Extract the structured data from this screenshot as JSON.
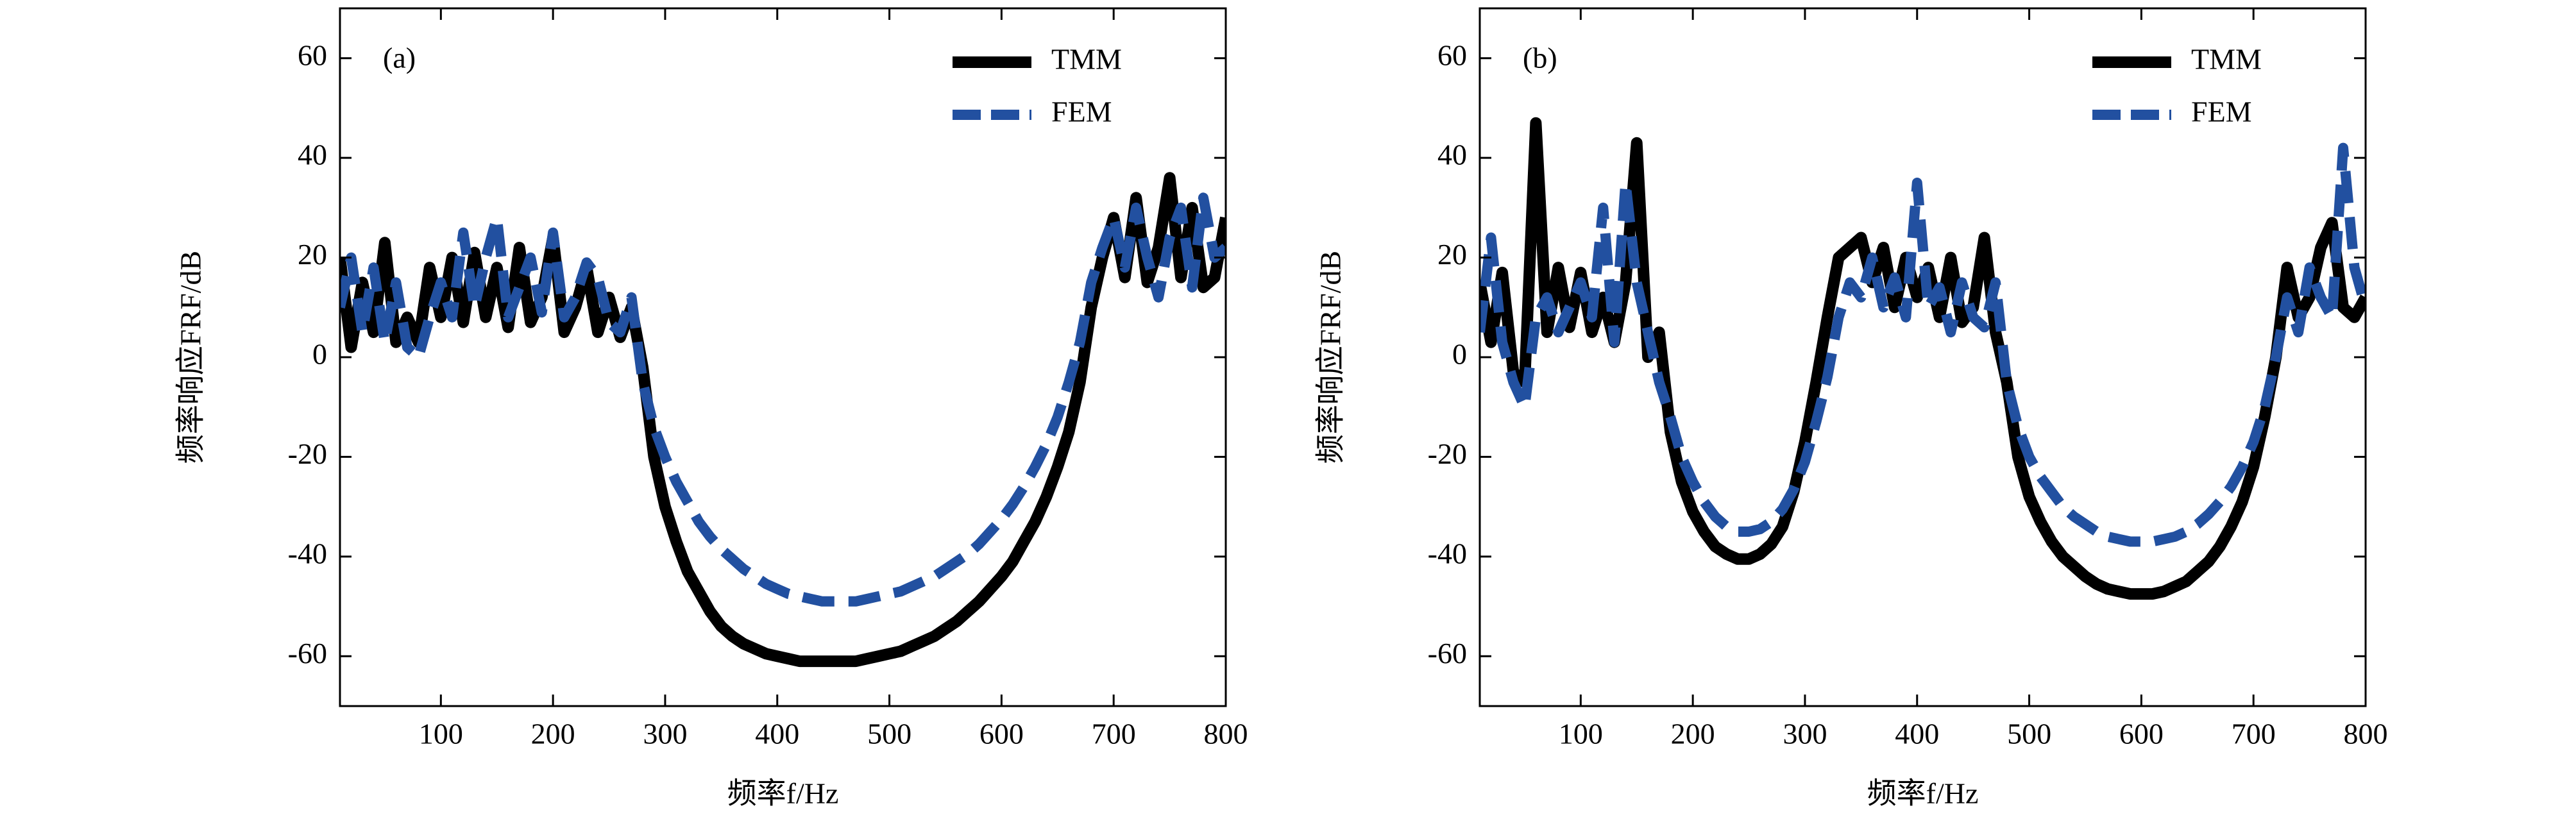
{
  "chart_data": [
    {
      "type": "line",
      "annotation": "(a)",
      "x_label": "频率f/Hz",
      "y_label": "频率响应FRF/dB",
      "xlim": [
        10,
        800
      ],
      "ylim": [
        -70,
        70
      ],
      "xticks": [
        100,
        200,
        300,
        400,
        500,
        600,
        700,
        800
      ],
      "yticks": [
        -60,
        -40,
        -20,
        0,
        20,
        40,
        60
      ],
      "legend": "upper right",
      "x": [
        10,
        20,
        30,
        40,
        50,
        60,
        70,
        80,
        90,
        100,
        110,
        120,
        130,
        140,
        150,
        160,
        170,
        180,
        190,
        200,
        210,
        220,
        230,
        240,
        250,
        260,
        270,
        280,
        290,
        300,
        310,
        320,
        330,
        340,
        350,
        360,
        370,
        380,
        390,
        400,
        410,
        420,
        430,
        440,
        450,
        460,
        470,
        480,
        490,
        500,
        510,
        520,
        530,
        540,
        550,
        560,
        570,
        580,
        590,
        600,
        610,
        620,
        630,
        640,
        650,
        660,
        670,
        680,
        690,
        700,
        710,
        720,
        730,
        740,
        750,
        760,
        770,
        780,
        790,
        800
      ],
      "series": [
        {
          "name": "TMM",
          "color": "#000000",
          "values": [
            20,
            2,
            15,
            5,
            23,
            3,
            8,
            3,
            18,
            8,
            20,
            7,
            21,
            8,
            18,
            6,
            22,
            7,
            12,
            24,
            5,
            10,
            18,
            5,
            12,
            4,
            10,
            -2,
            -20,
            -30,
            -37,
            -43,
            -47,
            -51,
            -54,
            -56,
            -57.5,
            -58.5,
            -59.5,
            -60,
            -60.5,
            -61,
            -61,
            -61,
            -61,
            -61,
            -61,
            -60.5,
            -60,
            -59.5,
            -59,
            -58,
            -57,
            -56,
            -54.5,
            -53,
            -51,
            -49,
            -46.5,
            -44,
            -41,
            -37,
            -33,
            -28,
            -22,
            -15,
            -5,
            10,
            20,
            28,
            16,
            32,
            15,
            22,
            36,
            16,
            30,
            14,
            16,
            28
          ]
        },
        {
          "name": "FEM",
          "color": "#2250a0",
          "values": [
            10,
            20,
            5,
            18,
            3,
            15,
            2,
            0,
            8,
            15,
            8,
            25,
            10,
            20,
            28,
            8,
            14,
            20,
            9,
            25,
            8,
            12,
            19,
            16,
            7,
            5,
            12,
            -5,
            -14,
            -20,
            -25,
            -29,
            -33,
            -36,
            -38.5,
            -40.5,
            -42.5,
            -44,
            -45.5,
            -46.5,
            -47.5,
            -48,
            -48.5,
            -49,
            -49,
            -49,
            -49,
            -48.5,
            -48,
            -47.5,
            -47,
            -46,
            -45,
            -44,
            -42.5,
            -41,
            -39.5,
            -37.5,
            -35,
            -32.5,
            -29.5,
            -26,
            -22,
            -17.5,
            -12,
            -5,
            3,
            15,
            22,
            28,
            18,
            30,
            20,
            12,
            24,
            30,
            14,
            32,
            20,
            22
          ]
        }
      ]
    },
    {
      "type": "line",
      "annotation": "(b)",
      "x_label": "频率f/Hz",
      "y_label": "频率响应FRF/dB",
      "xlim": [
        10,
        800
      ],
      "ylim": [
        -70,
        70
      ],
      "xticks": [
        100,
        200,
        300,
        400,
        500,
        600,
        700,
        800
      ],
      "yticks": [
        -60,
        -40,
        -20,
        0,
        20,
        40,
        60
      ],
      "legend": "upper right",
      "x": [
        10,
        20,
        30,
        40,
        50,
        60,
        70,
        80,
        90,
        100,
        110,
        120,
        130,
        140,
        150,
        160,
        170,
        180,
        190,
        200,
        210,
        220,
        230,
        240,
        250,
        260,
        270,
        280,
        290,
        300,
        310,
        320,
        330,
        340,
        350,
        360,
        370,
        380,
        390,
        400,
        410,
        420,
        430,
        440,
        450,
        460,
        470,
        480,
        490,
        500,
        510,
        520,
        530,
        540,
        550,
        560,
        570,
        580,
        590,
        600,
        610,
        620,
        630,
        640,
        650,
        660,
        670,
        680,
        690,
        700,
        710,
        720,
        730,
        740,
        750,
        760,
        770,
        780,
        790,
        800
      ],
      "series": [
        {
          "name": "TMM",
          "color": "#000000",
          "values": [
            15,
            3,
            17,
            -3,
            -5,
            47,
            5,
            18,
            6,
            17,
            5,
            12,
            3,
            15,
            43,
            0,
            5,
            -15,
            -25,
            -31,
            -35,
            -38,
            -39.5,
            -40.5,
            -40.5,
            -39.5,
            -37.5,
            -34,
            -27,
            -17,
            -5,
            8,
            20,
            22,
            24,
            15,
            22,
            10,
            20,
            12,
            18,
            8,
            20,
            7,
            10,
            24,
            5,
            -5,
            -20,
            -28,
            -33,
            -37,
            -40,
            -42,
            -44,
            -45.5,
            -46.5,
            -47,
            -47.5,
            -47.5,
            -47.5,
            -47,
            -46,
            -45,
            -43,
            -41,
            -38,
            -34,
            -29,
            -22,
            -12,
            0,
            18,
            8,
            12,
            22,
            27,
            10,
            8,
            12
          ]
        },
        {
          "name": "FEM",
          "color": "#2250a0",
          "values": [
            5,
            24,
            3,
            -5,
            -10,
            8,
            12,
            5,
            10,
            15,
            8,
            30,
            3,
            35,
            15,
            5,
            -5,
            -12,
            -20,
            -25,
            -29,
            -32,
            -34,
            -35,
            -35,
            -34.5,
            -33,
            -30.5,
            -26.5,
            -21,
            -13,
            -4,
            8,
            15,
            12,
            20,
            10,
            16,
            8,
            35,
            10,
            14,
            5,
            15,
            8,
            6,
            15,
            -5,
            -14,
            -20,
            -24,
            -27,
            -30,
            -32,
            -33.5,
            -35,
            -36,
            -36.5,
            -37,
            -37,
            -37,
            -36.5,
            -36,
            -35,
            -33.5,
            -31.5,
            -29,
            -26,
            -22,
            -17,
            -10,
            0,
            12,
            5,
            18,
            12,
            8,
            42,
            18,
            10
          ]
        }
      ]
    }
  ]
}
